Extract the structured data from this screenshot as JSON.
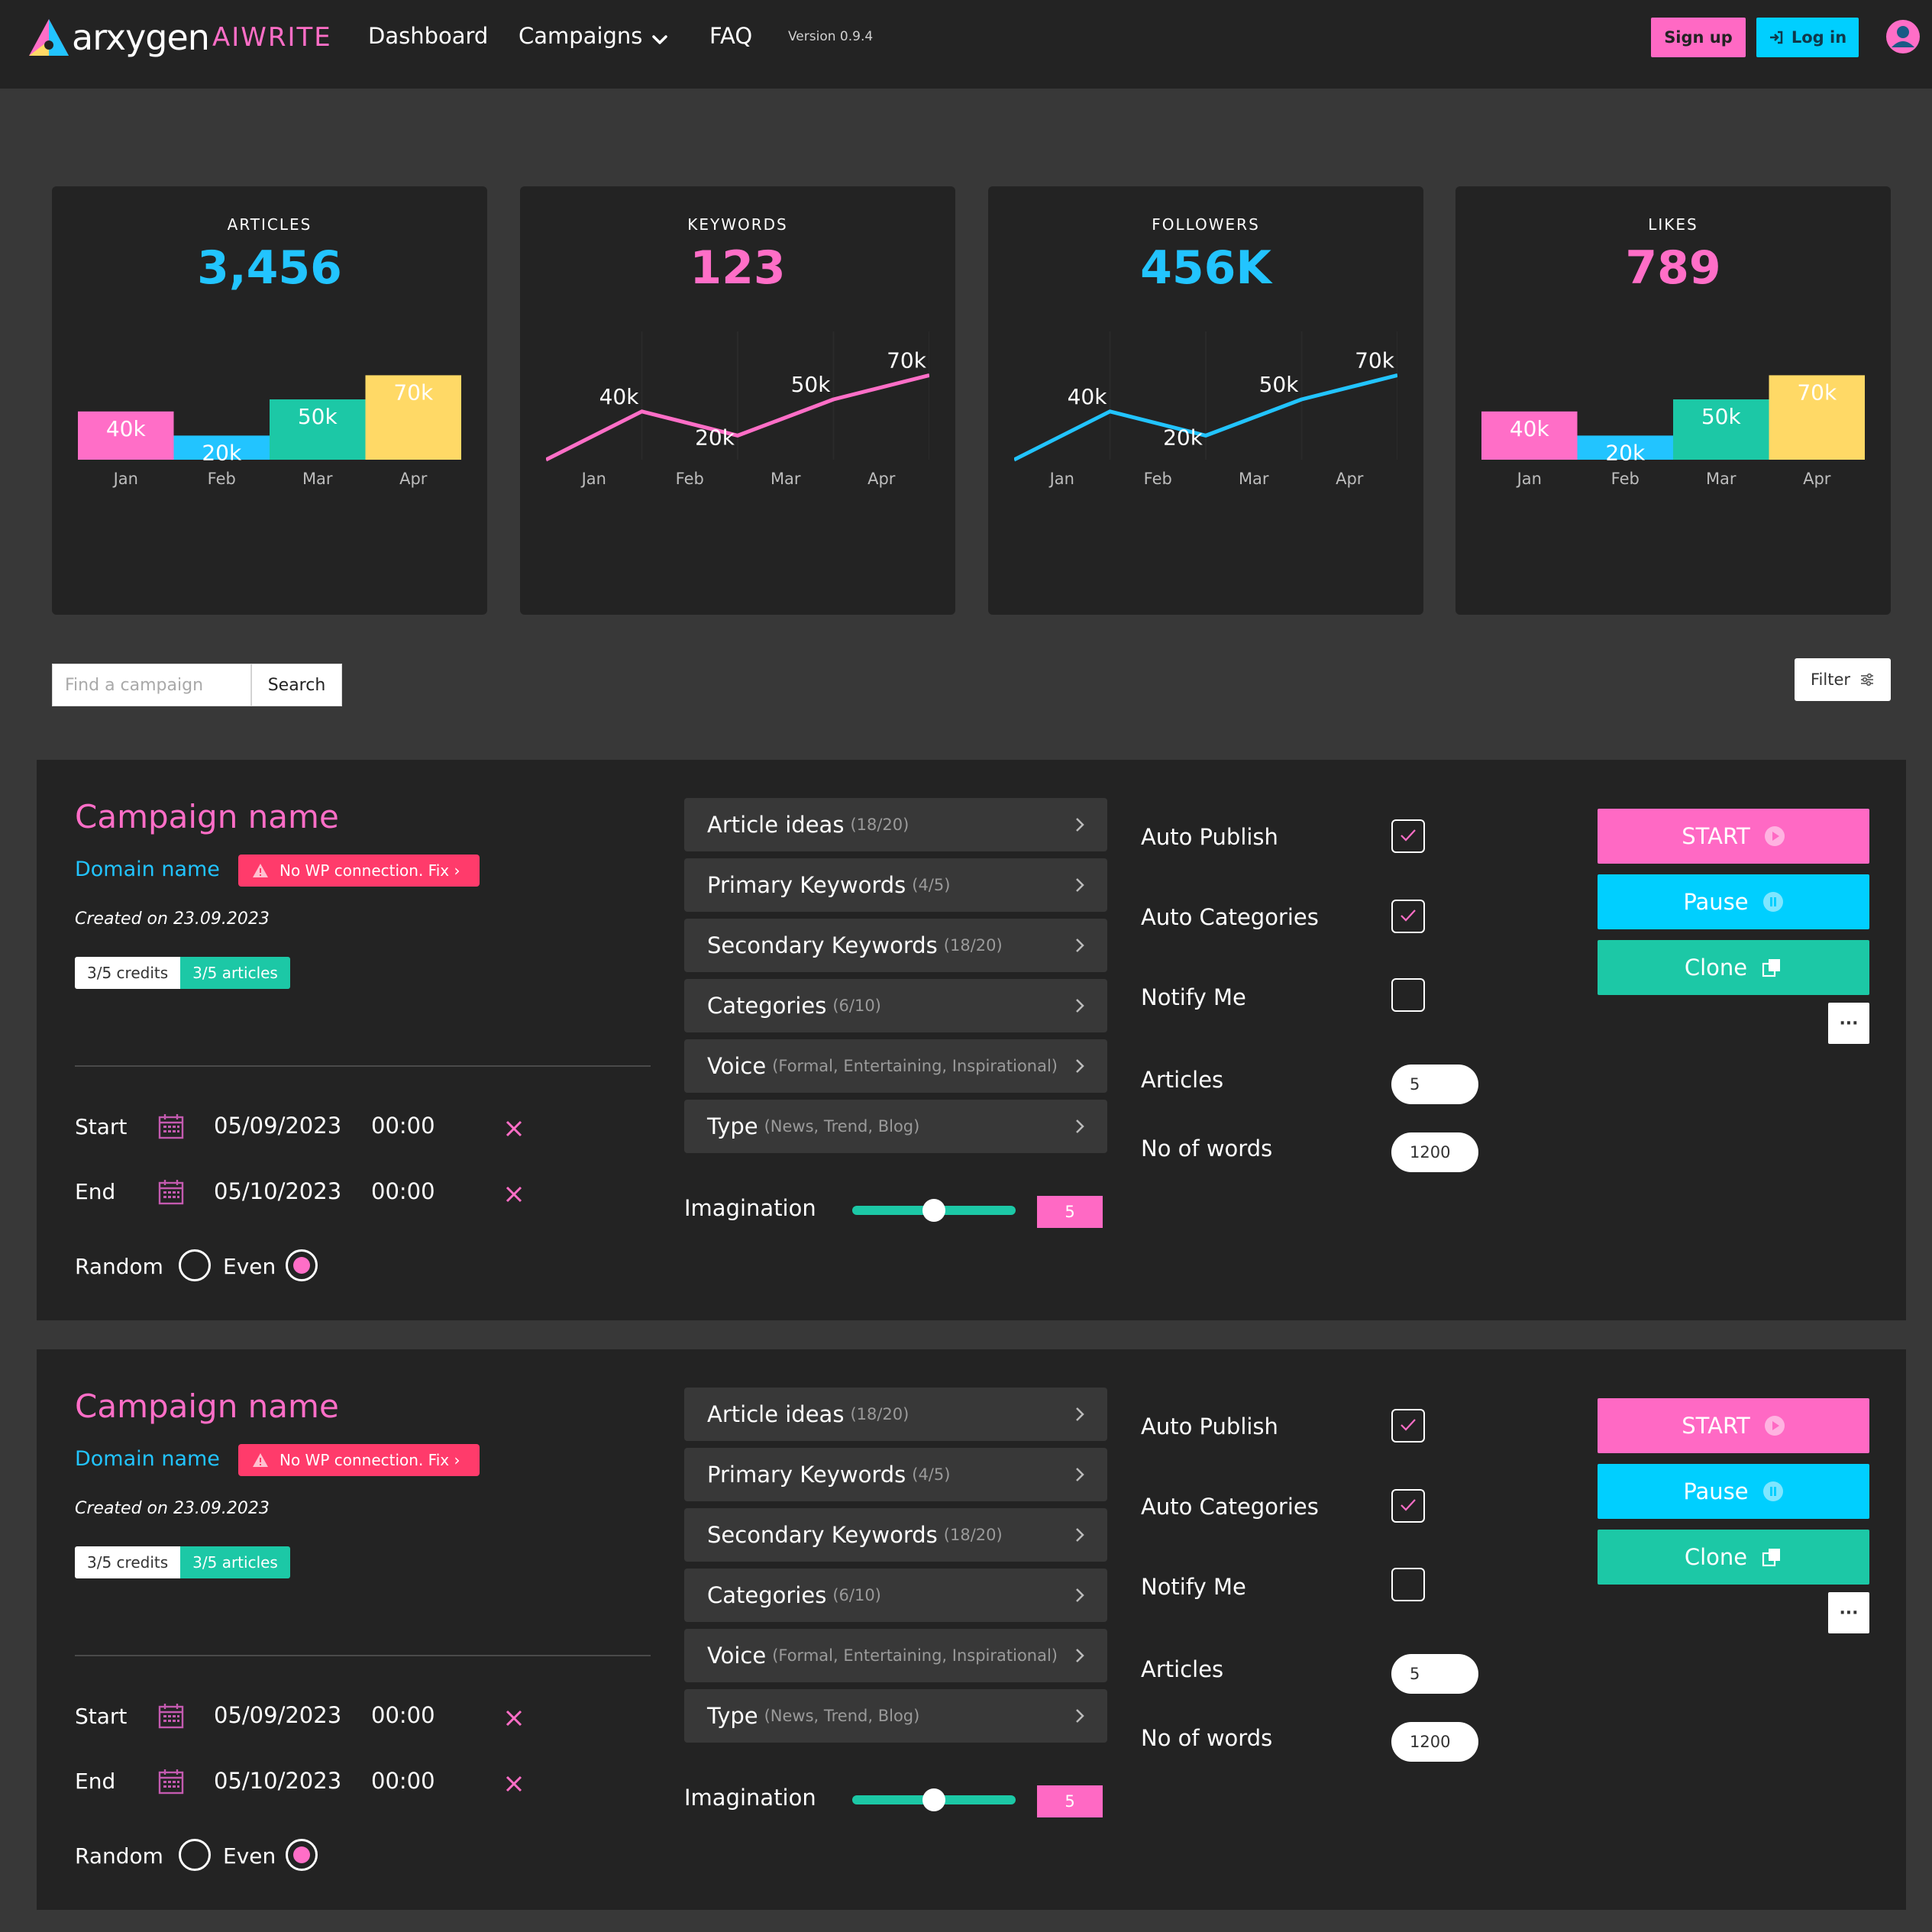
{
  "brand": {
    "name_main": "arxygen",
    "name_sub": "AIWRITE",
    "colors": {
      "pink": "#ff69c4",
      "cyan": "#00cfff",
      "green": "#1cc8a6",
      "yellow": "#ffd966"
    }
  },
  "nav": {
    "dashboard": "Dashboard",
    "campaigns": "Campaigns",
    "faq": "FAQ",
    "version": "Version 0.9.4",
    "signup": "Sign up",
    "login": "Log in"
  },
  "stats": [
    {
      "label": "ARTICLES",
      "value": "3,456",
      "value_color": "#22c4ff"
    },
    {
      "label": "KEYWORDS",
      "value": "123",
      "value_color": "#ff6ec7"
    },
    {
      "label": "FOLLOWERS",
      "value": "456K",
      "value_color": "#22c4ff"
    },
    {
      "label": "LIKES",
      "value": "789",
      "value_color": "#ff6ec7"
    }
  ],
  "chart_data": [
    {
      "type": "bar",
      "categories": [
        "Jan",
        "Feb",
        "Mar",
        "Apr"
      ],
      "values": [
        40,
        20,
        50,
        70
      ],
      "data_labels": [
        "40k",
        "20k",
        "50k",
        "70k"
      ],
      "colors": [
        "#ff6ec7",
        "#22c4ff",
        "#1cc8a6",
        "#ffd966"
      ],
      "ylim": [
        0,
        100
      ]
    },
    {
      "type": "line",
      "categories": [
        "Jan",
        "Feb",
        "Mar",
        "Apr"
      ],
      "values": [
        40,
        20,
        50,
        70
      ],
      "data_labels": [
        "40k",
        "20k",
        "50k",
        "70k"
      ],
      "color": "#ff6ec7",
      "ylim": [
        0,
        100
      ]
    },
    {
      "type": "line",
      "categories": [
        "Jan",
        "Feb",
        "Mar",
        "Apr"
      ],
      "values": [
        40,
        20,
        50,
        70
      ],
      "data_labels": [
        "40k",
        "20k",
        "50k",
        "70k"
      ],
      "color": "#22c4ff",
      "ylim": [
        0,
        100
      ]
    },
    {
      "type": "bar",
      "categories": [
        "Jan",
        "Feb",
        "Mar",
        "Apr"
      ],
      "values": [
        40,
        20,
        50,
        70
      ],
      "data_labels": [
        "40k",
        "20k",
        "50k",
        "70k"
      ],
      "colors": [
        "#ff6ec7",
        "#22c4ff",
        "#1cc8a6",
        "#ffd966"
      ],
      "ylim": [
        0,
        100
      ]
    }
  ],
  "search": {
    "placeholder": "Find a campaign",
    "button": "Search",
    "filter": "Filter"
  },
  "campaigns": [
    {
      "name": "Campaign name",
      "domain": "Domain name",
      "warning": "No WP connection. Fix ›",
      "created": "Created on 23.09.2023",
      "credits": "3/5 credits",
      "articles_badge": "3/5 articles",
      "start_label": "Start",
      "start_date": "05/09/2023",
      "start_time": "00:00",
      "end_label": "End",
      "end_date": "05/10/2023",
      "end_time": "00:00",
      "random_label": "Random",
      "even_label": "Even",
      "accordion": [
        {
          "label": "Article ideas",
          "sub": "(18/20)"
        },
        {
          "label": "Primary Keywords",
          "sub": "(4/5)"
        },
        {
          "label": "Secondary Keywords",
          "sub": "(18/20)"
        },
        {
          "label": "Categories",
          "sub": "(6/10)"
        },
        {
          "label": "Voice",
          "sub": "(Formal, Entertaining, Inspirational)"
        },
        {
          "label": "Type",
          "sub": "(News, Trend, Blog)"
        }
      ],
      "imagination_label": "Imagination",
      "imagination_value": "5",
      "auto_publish": "Auto Publish",
      "auto_categories": "Auto Categories",
      "notify_me": "Notify Me",
      "articles_label": "Articles",
      "articles_value": "5",
      "words_label": "No of words",
      "words_value": "1200",
      "start_btn": "START",
      "pause_btn": "Pause",
      "clone_btn": "Clone",
      "more_btn": "···"
    },
    {
      "name": "Campaign name",
      "domain": "Domain name",
      "warning": "No WP connection. Fix ›",
      "created": "Created on 23.09.2023",
      "credits": "3/5 credits",
      "articles_badge": "3/5 articles",
      "start_label": "Start",
      "start_date": "05/09/2023",
      "start_time": "00:00",
      "end_label": "End",
      "end_date": "05/10/2023",
      "end_time": "00:00",
      "random_label": "Random",
      "even_label": "Even",
      "accordion": [
        {
          "label": "Article ideas",
          "sub": "(18/20)"
        },
        {
          "label": "Primary Keywords",
          "sub": "(4/5)"
        },
        {
          "label": "Secondary Keywords",
          "sub": "(18/20)"
        },
        {
          "label": "Categories",
          "sub": "(6/10)"
        },
        {
          "label": "Voice",
          "sub": "(Formal, Entertaining, Inspirational)"
        },
        {
          "label": "Type",
          "sub": "(News, Trend, Blog)"
        }
      ],
      "imagination_label": "Imagination",
      "imagination_value": "5",
      "auto_publish": "Auto Publish",
      "auto_categories": "Auto Categories",
      "notify_me": "Notify Me",
      "articles_label": "Articles",
      "articles_value": "5",
      "words_label": "No of words",
      "words_value": "1200",
      "start_btn": "START",
      "pause_btn": "Pause",
      "clone_btn": "Clone",
      "more_btn": "···"
    }
  ]
}
